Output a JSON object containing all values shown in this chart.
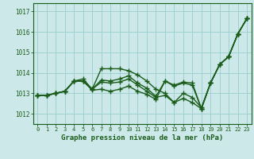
{
  "xlabel": "Graphe pression niveau de la mer (hPa)",
  "ylim": [
    1011.5,
    1017.4
  ],
  "xlim": [
    -0.5,
    23.5
  ],
  "yticks": [
    1012,
    1013,
    1014,
    1015,
    1016,
    1017
  ],
  "xticks": [
    0,
    1,
    2,
    3,
    4,
    5,
    6,
    7,
    8,
    9,
    10,
    11,
    12,
    13,
    14,
    15,
    16,
    17,
    18,
    19,
    20,
    21,
    22,
    23
  ],
  "background_color": "#cce8e8",
  "grid_color": "#99cccc",
  "line_color": "#1a5c1a",
  "line_width": 1.0,
  "marker": "+",
  "marker_size": 4,
  "marker_edge_width": 1.0,
  "series": [
    [
      1012.9,
      1012.9,
      1013.0,
      1013.1,
      1013.6,
      1013.7,
      1013.2,
      1014.2,
      1014.2,
      1014.2,
      1014.1,
      1013.9,
      1013.6,
      1013.2,
      1013.0,
      1012.55,
      1013.0,
      1012.8,
      1012.3,
      1013.5,
      1014.4,
      1014.8,
      1015.9,
      1016.65
    ],
    [
      1012.9,
      1012.9,
      1013.0,
      1013.1,
      1013.6,
      1013.6,
      1013.2,
      1013.65,
      1013.6,
      1013.7,
      1013.85,
      1013.5,
      1013.25,
      1012.85,
      1013.6,
      1013.4,
      1013.55,
      1013.5,
      1012.25,
      1013.5,
      1014.4,
      1014.8,
      1015.9,
      1016.65
    ],
    [
      1012.9,
      1012.9,
      1013.0,
      1013.1,
      1013.6,
      1013.6,
      1013.2,
      1013.55,
      1013.5,
      1013.55,
      1013.7,
      1013.4,
      1013.1,
      1012.8,
      1012.9,
      1012.55,
      1012.75,
      1012.55,
      1012.25,
      1013.5,
      1014.4,
      1014.8,
      1015.9,
      1016.65
    ],
    [
      1012.9,
      1012.9,
      1013.0,
      1013.1,
      1013.6,
      1013.6,
      1013.15,
      1013.2,
      1013.1,
      1013.2,
      1013.35,
      1013.1,
      1012.95,
      1012.7,
      1013.6,
      1013.35,
      1013.5,
      1013.4,
      1012.25,
      1013.5,
      1014.4,
      1014.8,
      1015.9,
      1016.65
    ]
  ]
}
